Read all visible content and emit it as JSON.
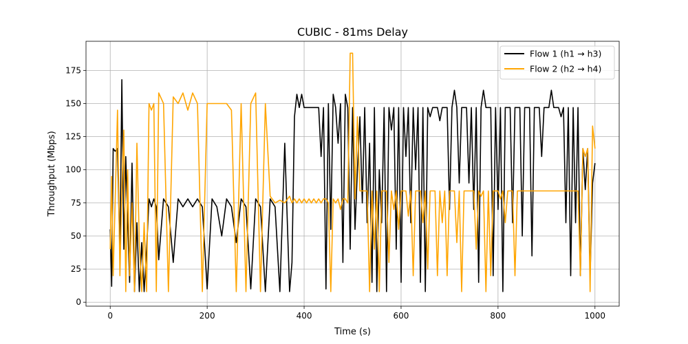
{
  "chart_data": {
    "type": "line",
    "title": "CUBIC - 81ms Delay",
    "xlabel": "Time (s)",
    "ylabel": "Throughput (Mbps)",
    "xlim": [
      -50,
      1050
    ],
    "ylim": [
      -3,
      197
    ],
    "xticks": [
      0,
      200,
      400,
      600,
      800,
      1000
    ],
    "yticks": [
      0,
      25,
      50,
      75,
      100,
      125,
      150,
      175
    ],
    "grid": true,
    "legend_position": "top-right",
    "series": [
      {
        "name": "Flow 1 (h1 → h3)",
        "color": "#000000",
        "x": [
          0,
          3,
          6,
          10,
          15,
          20,
          24,
          28,
          32,
          36,
          40,
          45,
          50,
          55,
          60,
          65,
          70,
          75,
          80,
          85,
          90,
          95,
          100,
          110,
          120,
          130,
          140,
          150,
          160,
          170,
          180,
          190,
          200,
          210,
          220,
          230,
          240,
          250,
          260,
          270,
          280,
          290,
          300,
          310,
          320,
          330,
          340,
          350,
          360,
          370,
          375,
          380,
          385,
          390,
          395,
          400,
          405,
          410,
          415,
          420,
          425,
          430,
          435,
          440,
          445,
          450,
          455,
          460,
          465,
          470,
          475,
          480,
          485,
          490,
          495,
          500,
          505,
          510,
          515,
          520,
          525,
          530,
          535,
          540,
          545,
          550,
          555,
          560,
          565,
          570,
          575,
          580,
          585,
          590,
          595,
          600,
          605,
          610,
          615,
          620,
          625,
          630,
          635,
          640,
          645,
          650,
          655,
          660,
          665,
          670,
          675,
          680,
          685,
          690,
          695,
          700,
          705,
          710,
          715,
          720,
          725,
          730,
          735,
          740,
          745,
          750,
          755,
          760,
          765,
          770,
          775,
          780,
          785,
          790,
          795,
          800,
          805,
          810,
          815,
          820,
          825,
          830,
          835,
          840,
          845,
          850,
          855,
          860,
          865,
          870,
          875,
          880,
          885,
          890,
          895,
          900,
          905,
          910,
          915,
          920,
          925,
          930,
          935,
          940,
          945,
          950,
          955,
          960,
          965,
          970,
          975,
          980,
          985,
          990,
          995,
          1000
        ],
        "y": [
          55,
          12,
          116,
          114,
          116,
          35,
          168,
          40,
          110,
          60,
          15,
          105,
          8,
          60,
          8,
          45,
          8,
          40,
          78,
          72,
          78,
          72,
          32,
          78,
          72,
          30,
          78,
          72,
          78,
          72,
          78,
          72,
          10,
          78,
          72,
          50,
          78,
          72,
          45,
          78,
          72,
          10,
          78,
          72,
          8,
          78,
          72,
          8,
          120,
          8,
          30,
          140,
          157,
          147,
          157,
          147,
          147,
          147,
          147,
          147,
          147,
          147,
          110,
          147,
          10,
          150,
          55,
          157,
          147,
          120,
          150,
          30,
          157,
          147,
          40,
          147,
          55,
          100,
          140,
          75,
          147,
          60,
          120,
          15,
          147,
          8,
          100,
          60,
          147,
          8,
          147,
          130,
          147,
          40,
          147,
          15,
          147,
          110,
          147,
          60,
          147,
          100,
          147,
          15,
          147,
          8,
          147,
          140,
          147,
          147,
          147,
          137,
          147,
          147,
          147,
          70,
          147,
          160,
          147,
          90,
          147,
          147,
          147,
          90,
          147,
          70,
          147,
          15,
          147,
          160,
          147,
          147,
          147,
          20,
          147,
          70,
          147,
          8,
          147,
          147,
          147,
          60,
          147,
          147,
          147,
          50,
          147,
          147,
          147,
          35,
          147,
          147,
          147,
          110,
          147,
          147,
          147,
          160,
          147,
          147,
          147,
          140,
          147,
          60,
          147,
          20,
          147,
          60,
          147,
          20,
          116,
          85,
          116,
          20,
          90,
          105
        ]
      },
      {
        "name": "Flow 2 (h2 → h4)",
        "color": "#ffa500",
        "x": [
          0,
          3,
          6,
          10,
          15,
          20,
          24,
          28,
          32,
          36,
          40,
          45,
          50,
          55,
          60,
          65,
          70,
          75,
          80,
          85,
          90,
          95,
          100,
          110,
          120,
          130,
          140,
          150,
          160,
          170,
          180,
          190,
          200,
          210,
          220,
          230,
          240,
          250,
          260,
          270,
          280,
          290,
          300,
          310,
          320,
          330,
          340,
          350,
          360,
          370,
          375,
          380,
          385,
          390,
          395,
          400,
          405,
          410,
          415,
          420,
          425,
          430,
          435,
          440,
          445,
          450,
          455,
          460,
          465,
          470,
          475,
          480,
          485,
          490,
          495,
          500,
          505,
          510,
          515,
          520,
          525,
          530,
          535,
          540,
          545,
          550,
          555,
          560,
          565,
          570,
          575,
          580,
          585,
          590,
          595,
          600,
          605,
          610,
          615,
          620,
          625,
          630,
          635,
          640,
          645,
          650,
          655,
          660,
          665,
          670,
          675,
          680,
          685,
          690,
          695,
          700,
          705,
          710,
          715,
          720,
          725,
          730,
          735,
          740,
          745,
          750,
          755,
          760,
          765,
          770,
          775,
          780,
          785,
          790,
          795,
          800,
          805,
          810,
          815,
          820,
          825,
          830,
          835,
          840,
          845,
          850,
          855,
          860,
          865,
          870,
          875,
          880,
          885,
          890,
          895,
          900,
          905,
          910,
          915,
          920,
          925,
          930,
          935,
          940,
          945,
          950,
          955,
          960,
          965,
          970,
          975,
          980,
          985,
          990,
          995,
          1000
        ],
        "y": [
          40,
          95,
          20,
          75,
          145,
          20,
          85,
          130,
          8,
          100,
          20,
          75,
          8,
          120,
          45,
          8,
          60,
          8,
          150,
          145,
          150,
          8,
          158,
          150,
          8,
          155,
          150,
          158,
          145,
          158,
          150,
          8,
          150,
          150,
          150,
          150,
          150,
          145,
          8,
          150,
          8,
          150,
          158,
          8,
          150,
          80,
          75,
          77,
          75,
          80,
          75,
          78,
          75,
          78,
          75,
          78,
          75,
          78,
          75,
          78,
          75,
          78,
          75,
          78,
          78,
          75,
          8,
          78,
          75,
          78,
          70,
          78,
          78,
          75,
          188,
          188,
          78,
          140,
          84,
          84,
          84,
          84,
          8,
          84,
          40,
          84,
          8,
          84,
          84,
          84,
          30,
          84,
          70,
          84,
          55,
          84,
          84,
          84,
          65,
          84,
          20,
          84,
          84,
          84,
          60,
          84,
          25,
          84,
          84,
          84,
          20,
          84,
          60,
          84,
          20,
          84,
          84,
          84,
          45,
          84,
          8,
          84,
          84,
          84,
          84,
          84,
          40,
          84,
          80,
          84,
          8,
          84,
          20,
          84,
          84,
          84,
          78,
          84,
          60,
          84,
          84,
          84,
          20,
          84,
          84,
          84,
          84,
          84,
          84,
          84,
          84,
          84,
          84,
          84,
          84,
          84,
          84,
          84,
          84,
          84,
          84,
          84,
          84,
          84,
          84,
          84,
          84,
          84,
          84,
          20,
          116,
          110,
          116,
          8,
          133,
          116
        ]
      }
    ]
  }
}
